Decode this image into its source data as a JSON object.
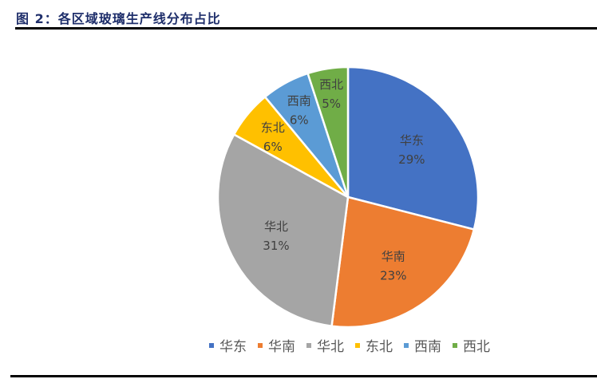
{
  "figure": {
    "title": "图 2：各区域玻璃生产线分布占比"
  },
  "chart_data": {
    "type": "pie",
    "title": "各区域玻璃生产线分布占比",
    "categories": [
      "华东",
      "华南",
      "华北",
      "东北",
      "西南",
      "西北"
    ],
    "values": [
      29,
      23,
      31,
      6,
      6,
      5
    ],
    "labels": [
      "29%",
      "23%",
      "31%",
      "6%",
      "6%",
      "5%"
    ],
    "colors": [
      "#4472c4",
      "#ed7d31",
      "#a5a5a5",
      "#ffc000",
      "#5b9bd5",
      "#70ad47"
    ],
    "start_angle": "12 o'clock",
    "direction": "clockwise",
    "legend_position": "bottom",
    "data_labels": "category name + percentage, inside slices"
  }
}
